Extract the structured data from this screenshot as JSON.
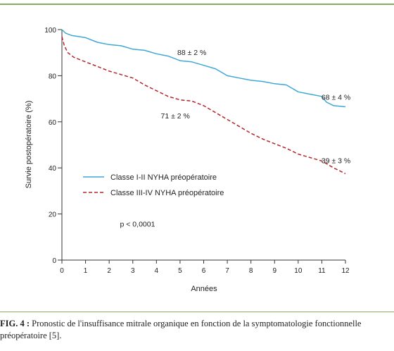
{
  "chart_data": {
    "type": "line",
    "ylabel": "Survie postopératoire (%)",
    "xlabel": "Années",
    "xlim": [
      0,
      12
    ],
    "ylim": [
      0,
      100
    ],
    "x_ticks": [
      "0",
      "1",
      "2",
      "3",
      "4",
      "5",
      "6",
      "7",
      "8",
      "9",
      "10",
      "11",
      "12"
    ],
    "y_ticks": [
      "0",
      "20",
      "40",
      "60",
      "80",
      "100"
    ],
    "grid": false,
    "legend_position": "center-left",
    "series": [
      {
        "name": "Classe I-II NYHA préopératoire",
        "color": "#3fa7d6",
        "style": "solid",
        "x": [
          0,
          0.15,
          0.4,
          1,
          1.5,
          2,
          2.5,
          3,
          3.5,
          4,
          4.5,
          5,
          5.5,
          6,
          6.5,
          7,
          7.5,
          8,
          8.5,
          9,
          9.5,
          10,
          10.5,
          11,
          11.2,
          11.5,
          12
        ],
        "y": [
          100,
          98.5,
          97.5,
          96.5,
          94.5,
          93.5,
          93,
          91.5,
          91,
          89.5,
          88.5,
          86.5,
          86,
          84.5,
          83,
          80,
          79,
          78,
          77.5,
          76.5,
          76,
          73,
          72,
          71,
          68.5,
          67,
          66.5
        ]
      },
      {
        "name": "Classe III-IV NYHA préopératoire",
        "color": "#b3262b",
        "style": "dashed",
        "x": [
          0,
          0.1,
          0.25,
          0.5,
          1,
          1.5,
          2,
          2.5,
          3,
          3.5,
          4,
          4.5,
          5,
          5.5,
          6,
          6.5,
          7,
          7.5,
          8,
          8.5,
          9,
          9.5,
          10,
          10.5,
          11,
          11.5,
          12
        ],
        "y": [
          97,
          93,
          90,
          88,
          86,
          84,
          82,
          80.5,
          79,
          76,
          73.5,
          71,
          69.5,
          69,
          67,
          64,
          61,
          58,
          55,
          52.5,
          50.5,
          48.5,
          46,
          44.5,
          43,
          40,
          37.5
        ]
      }
    ],
    "annotations": [
      {
        "text": "88 ± 2 %",
        "x": 5.5,
        "y": 89
      },
      {
        "text": "71 ± 2 %",
        "x": 4.8,
        "y": 61.5
      },
      {
        "text": "68 ± 4 %",
        "x": 11.6,
        "y": 69.5
      },
      {
        "text": "39 ± 3 %",
        "x": 11.6,
        "y": 42
      },
      {
        "text": "p < 0,0001",
        "x": 3.2,
        "y": 14.5
      }
    ]
  },
  "caption": {
    "label": "FIG. 4 :",
    "line1": " Pronostic de l'insuffisance mitrale organique en fonction de la symptomatologie fonctionnelle",
    "line2": "préopératoire [5]."
  }
}
